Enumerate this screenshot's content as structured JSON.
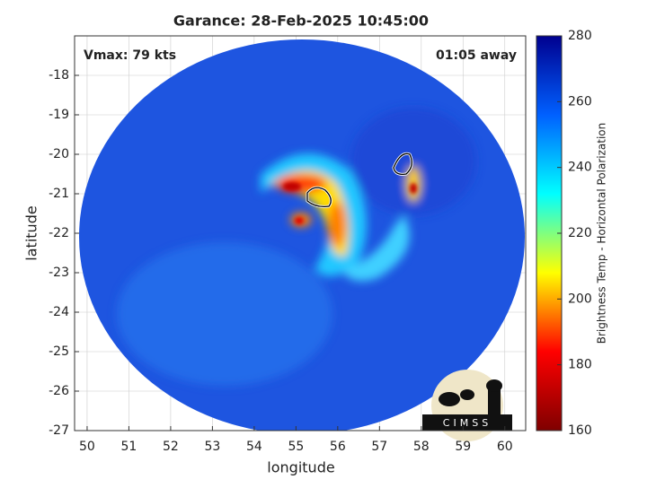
{
  "chart_data": {
    "type": "map",
    "title": "Garance: 28-Feb-2025 10:45:00",
    "annotations": [
      "Vmax: 79 kts",
      "01:05 away"
    ],
    "x_label": "longitude",
    "y_label": "latitude",
    "xlim": [
      49.7,
      60.5
    ],
    "xticks": [
      50,
      51,
      52,
      53,
      54,
      55,
      56,
      57,
      58,
      59,
      60
    ],
    "ylim": [
      -27,
      -17
    ],
    "yticks": [
      -18,
      -19,
      -20,
      -21,
      -22,
      -23,
      -24,
      -25,
      -26,
      -27
    ],
    "grid": true,
    "colorbar": {
      "label": "Brightness Temp - Horizontal Polarization",
      "lim": [
        160,
        280
      ],
      "ticks": [
        160,
        180,
        200,
        220,
        240,
        260,
        280
      ],
      "colors": [
        "#7f0000",
        "#ff0000",
        "#ffff00",
        "#00ffff",
        "#0060ff",
        "#00008f"
      ]
    },
    "logo": "CIMSS"
  }
}
